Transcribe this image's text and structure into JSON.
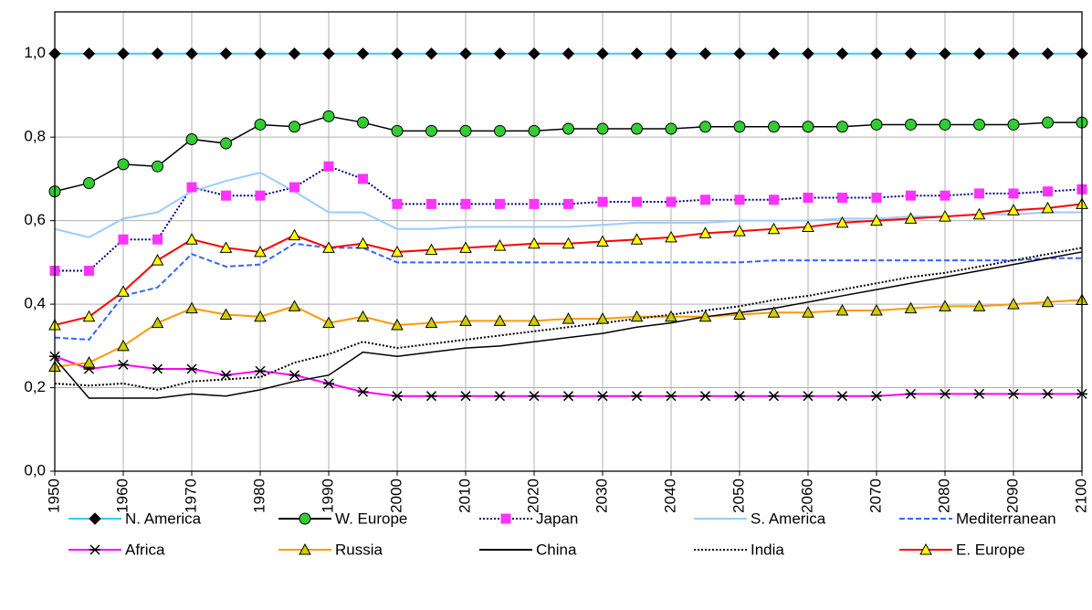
{
  "chart_data": {
    "type": "line",
    "x": [
      1950,
      1955,
      1960,
      1965,
      1970,
      1975,
      1980,
      1985,
      1990,
      1995,
      2000,
      2005,
      2010,
      2015,
      2020,
      2025,
      2030,
      2035,
      2040,
      2045,
      2050,
      2055,
      2060,
      2065,
      2070,
      2075,
      2080,
      2085,
      2090,
      2095,
      2100
    ],
    "xlim": [
      1950,
      2100
    ],
    "xticks": [
      1950,
      1960,
      1970,
      1980,
      1990,
      2000,
      2010,
      2020,
      2030,
      2040,
      2050,
      2060,
      2070,
      2080,
      2090,
      2100
    ],
    "ylim": [
      0,
      1.1
    ],
    "yticks": [
      {
        "value": 0,
        "label": "0,0"
      },
      {
        "value": 0.2,
        "label": "0,2"
      },
      {
        "value": 0.4,
        "label": "0,4"
      },
      {
        "value": 0.6,
        "label": "0,6"
      },
      {
        "value": 0.8,
        "label": "0,8"
      },
      {
        "value": 1,
        "label": "1,0"
      }
    ],
    "grid": true,
    "series": [
      {
        "name": "N. America",
        "color": "#33ccff",
        "marker": "diamond",
        "marker_fill": "#000000",
        "dash": "solid",
        "values": [
          1,
          1,
          1,
          1,
          1,
          1,
          1,
          1,
          1,
          1,
          1,
          1,
          1,
          1,
          1,
          1,
          1,
          1,
          1,
          1,
          1,
          1,
          1,
          1,
          1,
          1,
          1,
          1,
          1,
          1,
          1
        ]
      },
      {
        "name": "W. Europe",
        "color": "#000000",
        "marker": "circle",
        "marker_fill": "#33cc33",
        "dash": "solid",
        "values": [
          0.67,
          0.69,
          0.735,
          0.73,
          0.795,
          0.785,
          0.83,
          0.825,
          0.85,
          0.835,
          0.815,
          0.815,
          0.815,
          0.815,
          0.815,
          0.82,
          0.82,
          0.82,
          0.82,
          0.825,
          0.825,
          0.825,
          0.825,
          0.825,
          0.83,
          0.83,
          0.83,
          0.83,
          0.83,
          0.835,
          0.835
        ]
      },
      {
        "name": "Japan",
        "color": "#000080",
        "marker": "square",
        "marker_fill": "#ff33ff",
        "dash": "dot",
        "values": [
          0.48,
          0.48,
          0.555,
          0.555,
          0.68,
          0.66,
          0.66,
          0.68,
          0.73,
          0.7,
          0.64,
          0.64,
          0.64,
          0.64,
          0.64,
          0.64,
          0.645,
          0.645,
          0.645,
          0.65,
          0.65,
          0.65,
          0.655,
          0.655,
          0.655,
          0.66,
          0.66,
          0.665,
          0.665,
          0.67,
          0.675
        ]
      },
      {
        "name": "S. America",
        "color": "#99ccff",
        "marker": "none",
        "marker_fill": "#99ccff",
        "dash": "solid",
        "values": [
          0.58,
          0.56,
          0.605,
          0.62,
          0.67,
          0.695,
          0.715,
          0.67,
          0.62,
          0.62,
          0.58,
          0.58,
          0.585,
          0.585,
          0.585,
          0.585,
          0.59,
          0.595,
          0.595,
          0.595,
          0.6,
          0.6,
          0.6,
          0.605,
          0.605,
          0.61,
          0.61,
          0.615,
          0.615,
          0.62,
          0.62
        ]
      },
      {
        "name": "Mediterranean",
        "color": "#3366ff",
        "marker": "none",
        "marker_fill": "#3366ff",
        "dash": "dash",
        "values": [
          0.32,
          0.315,
          0.42,
          0.44,
          0.52,
          0.49,
          0.495,
          0.545,
          0.535,
          0.535,
          0.5,
          0.5,
          0.5,
          0.5,
          0.5,
          0.5,
          0.5,
          0.5,
          0.5,
          0.5,
          0.5,
          0.505,
          0.505,
          0.505,
          0.505,
          0.505,
          0.505,
          0.505,
          0.505,
          0.51,
          0.51
        ]
      },
      {
        "name": "Africa",
        "color": "#ff00ff",
        "marker": "star",
        "marker_fill": "#000000",
        "dash": "solid",
        "values": [
          0.275,
          0.245,
          0.255,
          0.245,
          0.245,
          0.23,
          0.24,
          0.23,
          0.21,
          0.19,
          0.18,
          0.18,
          0.18,
          0.18,
          0.18,
          0.18,
          0.18,
          0.18,
          0.18,
          0.18,
          0.18,
          0.18,
          0.18,
          0.18,
          0.18,
          0.185,
          0.185,
          0.185,
          0.185,
          0.185,
          0.185
        ]
      },
      {
        "name": "Russia",
        "color": "#ff9900",
        "marker": "triangle",
        "marker_fill": "#cccc00",
        "dash": "solid",
        "values": [
          0.25,
          0.26,
          0.3,
          0.355,
          0.39,
          0.375,
          0.37,
          0.395,
          0.355,
          0.37,
          0.35,
          0.355,
          0.36,
          0.36,
          0.36,
          0.365,
          0.365,
          0.37,
          0.37,
          0.37,
          0.375,
          0.38,
          0.38,
          0.385,
          0.385,
          0.39,
          0.395,
          0.395,
          0.4,
          0.405,
          0.41
        ]
      },
      {
        "name": "China",
        "color": "#000000",
        "marker": "none",
        "marker_fill": "#000000",
        "dash": "solid",
        "values": [
          0.27,
          0.175,
          0.175,
          0.175,
          0.185,
          0.18,
          0.195,
          0.215,
          0.23,
          0.285,
          0.275,
          0.285,
          0.295,
          0.3,
          0.31,
          0.32,
          0.33,
          0.345,
          0.355,
          0.37,
          0.38,
          0.39,
          0.405,
          0.42,
          0.435,
          0.45,
          0.465,
          0.48,
          0.495,
          0.51,
          0.525
        ]
      },
      {
        "name": "India",
        "color": "#000000",
        "marker": "none",
        "marker_fill": "#000000",
        "dash": "dot",
        "values": [
          0.21,
          0.205,
          0.21,
          0.195,
          0.215,
          0.22,
          0.225,
          0.26,
          0.28,
          0.31,
          0.295,
          0.305,
          0.315,
          0.325,
          0.335,
          0.345,
          0.355,
          0.365,
          0.375,
          0.385,
          0.395,
          0.41,
          0.42,
          0.435,
          0.45,
          0.465,
          0.475,
          0.49,
          0.505,
          0.52,
          0.535
        ]
      },
      {
        "name": "E. Europe",
        "color": "#ff0000",
        "marker": "triangle",
        "marker_fill": "#ffff00",
        "dash": "solid",
        "values": [
          0.35,
          0.37,
          0.43,
          0.505,
          0.555,
          0.535,
          0.525,
          0.565,
          0.535,
          0.545,
          0.525,
          0.53,
          0.535,
          0.54,
          0.545,
          0.545,
          0.55,
          0.555,
          0.56,
          0.57,
          0.575,
          0.58,
          0.585,
          0.595,
          0.6,
          0.605,
          0.61,
          0.615,
          0.625,
          0.63,
          0.64
        ]
      }
    ]
  }
}
